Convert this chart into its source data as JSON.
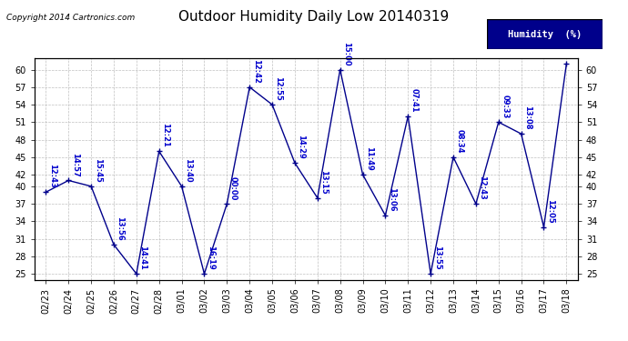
{
  "title": "Outdoor Humidity Daily Low 20140319",
  "copyright": "Copyright 2014 Cartronics.com",
  "legend_label": "Humidity  (%)",
  "x_labels": [
    "02/23",
    "02/24",
    "02/25",
    "02/26",
    "02/27",
    "02/28",
    "03/01",
    "03/02",
    "03/03",
    "03/04",
    "03/05",
    "03/06",
    "03/07",
    "03/08",
    "03/09",
    "03/10",
    "03/11",
    "03/12",
    "03/13",
    "03/14",
    "03/15",
    "03/16",
    "03/17",
    "03/18"
  ],
  "y_values": [
    39,
    41,
    40,
    30,
    25,
    46,
    40,
    25,
    37,
    57,
    54,
    44,
    38,
    60,
    42,
    35,
    52,
    25,
    45,
    37,
    51,
    49,
    33,
    61
  ],
  "point_labels": [
    "12:43",
    "14:57",
    "15:45",
    "13:56",
    "14:41",
    "12:21",
    "13:40",
    "16:19",
    "00:00",
    "12:42",
    "12:55",
    "14:29",
    "13:15",
    "15:00",
    "11:49",
    "13:06",
    "07:41",
    "13:55",
    "08:34",
    "12:43",
    "09:33",
    "13:08",
    "12:05",
    ""
  ],
  "ylim": [
    24,
    62
  ],
  "yticks": [
    25,
    28,
    31,
    34,
    37,
    40,
    42,
    45,
    48,
    51,
    54,
    57,
    60
  ],
  "line_color": "#00008B",
  "marker_color": "#00008B",
  "label_color": "#0000CD",
  "bg_color": "#ffffff",
  "grid_color": "#b0b0b0",
  "title_fontsize": 11,
  "tick_fontsize": 7,
  "point_label_fontsize": 6
}
